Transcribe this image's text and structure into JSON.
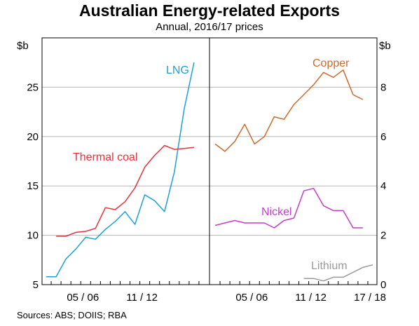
{
  "chart_data": [
    {
      "type": "line",
      "title": "Australian Energy-related Exports",
      "subtitle": "Annual, 2016/17 prices",
      "ylabel": "$b",
      "ylim": [
        5,
        30
      ],
      "yticks": [
        5,
        10,
        15,
        20,
        25
      ],
      "x": [
        2002,
        2003,
        2004,
        2005,
        2006,
        2007,
        2008,
        2009,
        2010,
        2011,
        2012,
        2013,
        2014,
        2015,
        2016,
        2017,
        2018
      ],
      "xtick_labels": [
        "05 / 06",
        "11 / 12"
      ],
      "series": [
        {
          "name": "LNG",
          "color": "#1ba1d6",
          "values": [
            5.8,
            5.8,
            7.6,
            8.6,
            9.8,
            9.6,
            10.6,
            11.4,
            12.4,
            11.1,
            14.1,
            13.5,
            12.4,
            16.4,
            22.8,
            27.5,
            null
          ]
        },
        {
          "name": "Thermal coal",
          "color": "#e5323c",
          "values": [
            null,
            9.9,
            9.9,
            10.3,
            10.4,
            10.7,
            12.8,
            12.6,
            13.4,
            14.8,
            16.9,
            18.1,
            19.1,
            18.7,
            18.8,
            18.9,
            null
          ]
        }
      ],
      "grid": true
    },
    {
      "type": "line",
      "ylabel": "$b",
      "ylim": [
        0,
        10
      ],
      "yticks": [
        0,
        2,
        4,
        6,
        8
      ],
      "x": [
        2002,
        2003,
        2004,
        2005,
        2006,
        2007,
        2008,
        2009,
        2010,
        2011,
        2012,
        2013,
        2014,
        2015,
        2016,
        2017,
        2018
      ],
      "xtick_labels": [
        "05 / 06",
        "11 / 12",
        "17 / 18"
      ],
      "series": [
        {
          "name": "Copper",
          "color": "#cc6a2c",
          "values": [
            5.7,
            5.4,
            5.8,
            6.5,
            5.7,
            6.0,
            6.8,
            6.7,
            7.3,
            7.7,
            8.1,
            8.6,
            8.4,
            8.7,
            7.7,
            7.5,
            null
          ]
        },
        {
          "name": "Nickel",
          "color": "#c23ec6",
          "values": [
            2.4,
            2.5,
            2.6,
            2.5,
            2.5,
            2.5,
            2.3,
            2.6,
            2.7,
            3.8,
            3.9,
            3.2,
            3.0,
            3.0,
            2.3,
            2.3,
            null
          ]
        },
        {
          "name": "Lithium",
          "color": "#9a9a9a",
          "values": [
            null,
            null,
            null,
            null,
            null,
            null,
            null,
            null,
            null,
            0.25,
            0.25,
            0.15,
            0.3,
            0.3,
            0.5,
            0.7,
            0.8
          ]
        }
      ],
      "grid": true
    }
  ],
  "source": "Sources:   ABS; DOIIS; RBA"
}
